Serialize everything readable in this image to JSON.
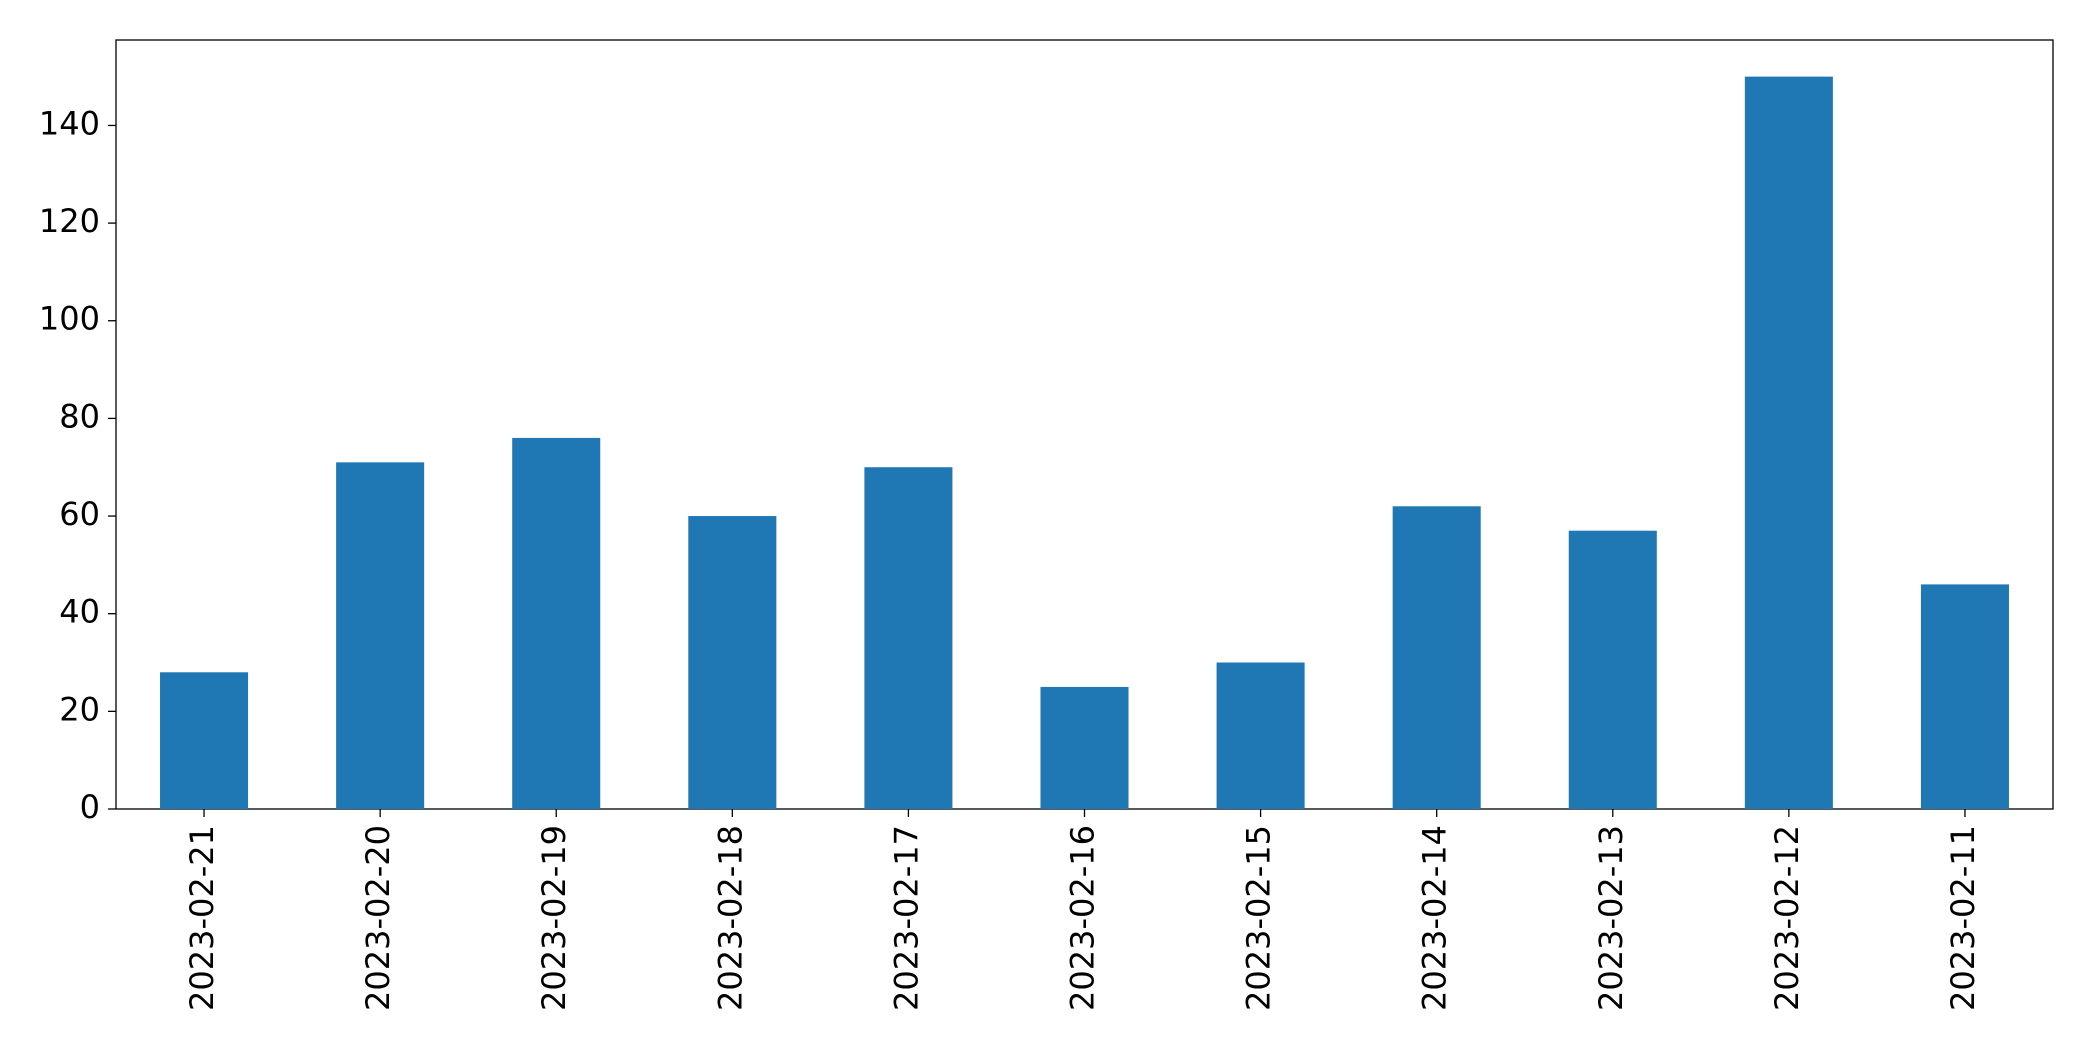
{
  "chart_data": {
    "type": "bar",
    "categories": [
      "2023-02-21",
      "2023-02-20",
      "2023-02-19",
      "2023-02-18",
      "2023-02-17",
      "2023-02-16",
      "2023-02-15",
      "2023-02-14",
      "2023-02-13",
      "2023-02-12",
      "2023-02-11"
    ],
    "values": [
      28,
      71,
      76,
      60,
      70,
      25,
      30,
      62,
      57,
      150,
      46
    ],
    "color": "#1f77b4",
    "ylim": [
      0,
      157.5
    ],
    "yticks": [
      0,
      20,
      40,
      60,
      80,
      100,
      120,
      140
    ],
    "grid": false
  }
}
